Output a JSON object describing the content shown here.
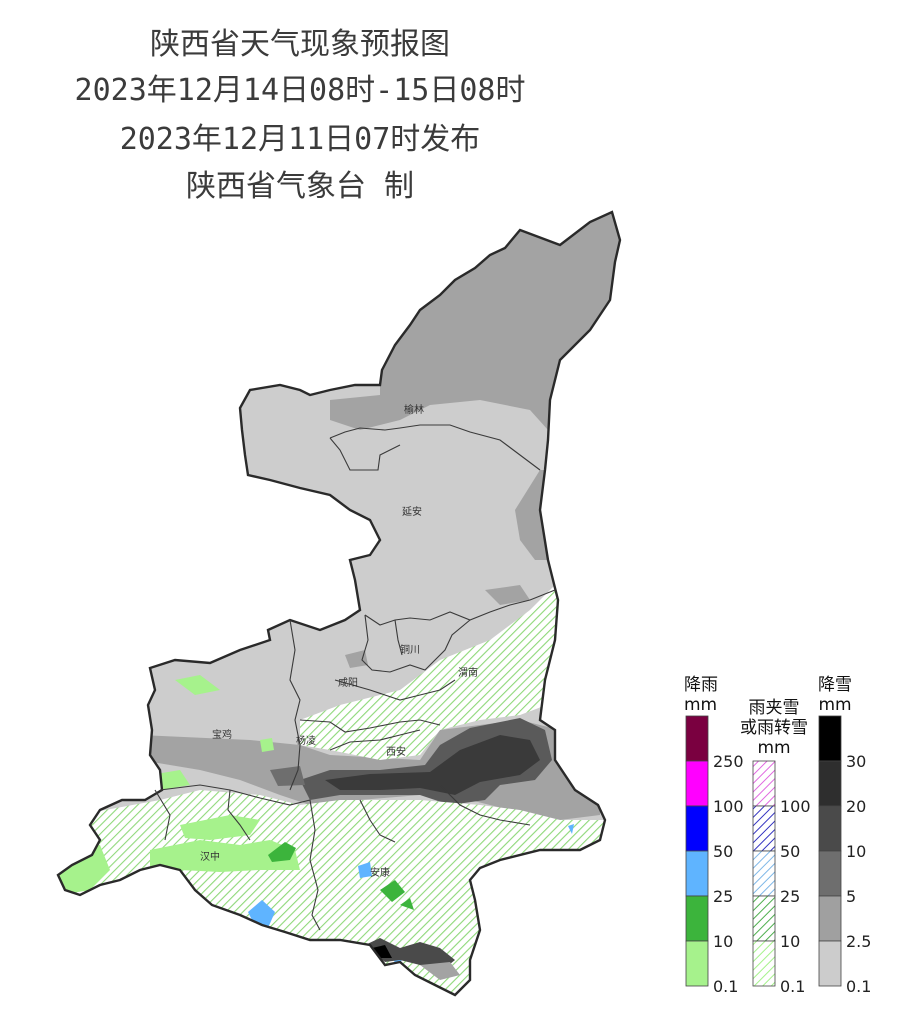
{
  "title": {
    "line1": "陕西省天气现象预报图",
    "line2": "2023年12月14日08时-15日08时",
    "line3": "2023年12月11日07时发布",
    "line4": "陕西省气象台 制"
  },
  "cities": [
    "榆林",
    "延安",
    "铜川",
    "咸阳",
    "渭南",
    "宝鸡",
    "杨凌",
    "西安",
    "汉中",
    "安康"
  ],
  "legend": {
    "rain": {
      "title_line1": "降雨",
      "title_line2": "mm",
      "ticks": [
        "250",
        "100",
        "50",
        "25",
        "10",
        "0.1"
      ],
      "colors": [
        "#7a0040",
        "#ff00ff",
        "#0000ff",
        "#5fb4ff",
        "#3cb43c",
        "#a6f28c"
      ]
    },
    "sleet": {
      "title_line1": "雨夹雪",
      "title_line2": "或雨转雪",
      "title_line3": "mm",
      "ticks": [
        "100",
        "50",
        "25",
        "10",
        "0.1"
      ],
      "colors": [
        "#e066e0",
        "#3030c0",
        "#80b8e8",
        "#50b050",
        "#a6f28c"
      ]
    },
    "snow": {
      "title_line1": "降雪",
      "title_line2": "mm",
      "ticks": [
        "30",
        "20",
        "10",
        "5",
        "2.5",
        "0.1"
      ],
      "colors": [
        "#000000",
        "#2e2e2e",
        "#4a4a4a",
        "#6e6e6e",
        "#a0a0a0",
        "#cccccc"
      ]
    }
  }
}
